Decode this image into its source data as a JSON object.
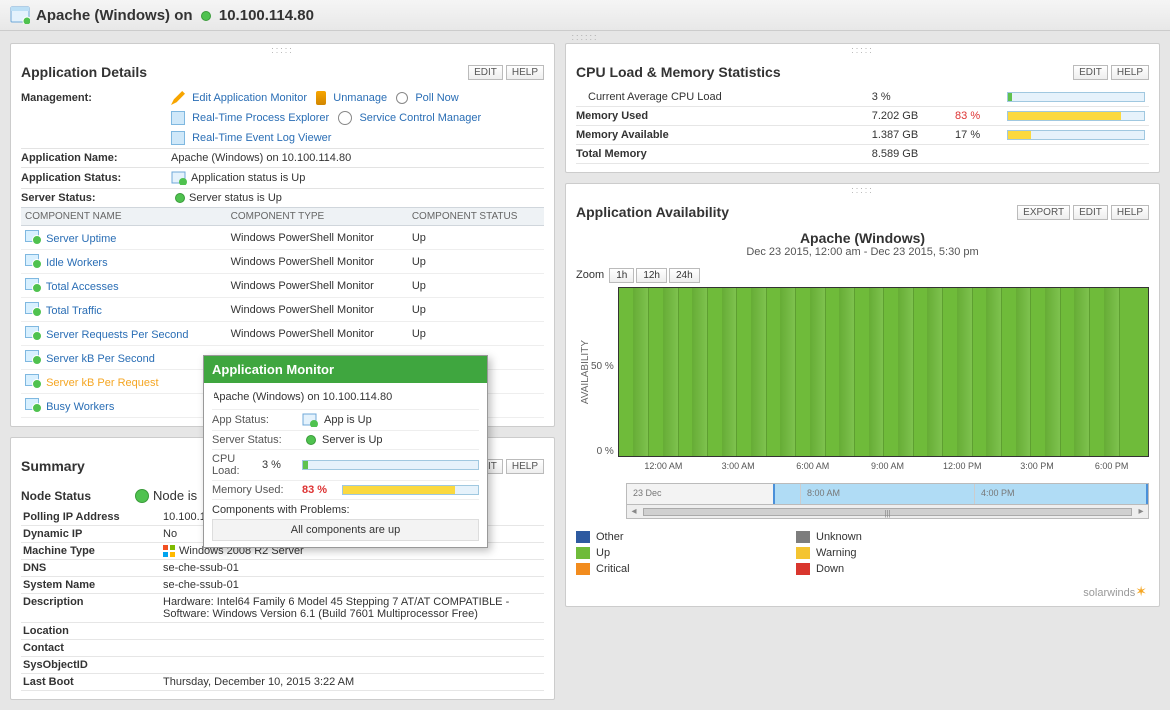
{
  "header": {
    "prefix": "Apache (Windows) on",
    "ip": "10.100.114.80"
  },
  "appDetails": {
    "title": "Application Details",
    "edit": "EDIT",
    "help": "HELP",
    "managementLabel": "Management:",
    "links": {
      "editMon": "Edit Application Monitor",
      "unmanage": "Unmanage",
      "pollNow": "Poll Now",
      "rtProcess": "Real-Time Process Explorer",
      "scm": "Service Control Manager",
      "rtEvent": "Real-Time Event Log Viewer"
    },
    "appNameLabel": "Application Name:",
    "appName": "Apache (Windows) on 10.100.114.80",
    "appStatusLabel": "Application Status:",
    "appStatus": "Application status is Up",
    "serverStatusLabel": "Server Status:",
    "serverStatus": "Server status is Up",
    "columns": {
      "c1": "COMPONENT NAME",
      "c2": "COMPONENT TYPE",
      "c3": "COMPONENT STATUS"
    },
    "rows": [
      {
        "name": "Server Uptime",
        "type": "Windows PowerShell Monitor",
        "status": "Up"
      },
      {
        "name": "Idle Workers",
        "type": "Windows PowerShell Monitor",
        "status": "Up"
      },
      {
        "name": "Total Accesses",
        "type": "Windows PowerShell Monitor",
        "status": "Up"
      },
      {
        "name": "Total Traffic",
        "type": "Windows PowerShell Monitor",
        "status": "Up"
      },
      {
        "name": "Server Requests Per Second",
        "type": "Windows PowerShell Monitor",
        "status": "Up"
      },
      {
        "name": "Server kB Per Second",
        "type": "",
        "status": ""
      },
      {
        "name": "Server kB Per Request",
        "type": "",
        "status": ""
      },
      {
        "name": "Busy Workers",
        "type": "",
        "status": ""
      }
    ],
    "highlightIndex": 6
  },
  "tooltip": {
    "title": "Application Monitor",
    "sub": "Apache (Windows) on 10.100.114.80",
    "appStatusLabel": "App Status:",
    "appStatus": "App is Up",
    "serverStatusLabel": "Server Status:",
    "serverStatus": "Server is Up",
    "cpuLabel": "CPU Load:",
    "cpuPct": "3 %",
    "cpuFill": 3,
    "memLabel": "Memory Used:",
    "memPct": "83 %",
    "memFill": 83,
    "problemsLabel": "Components with Problems:",
    "problemsText": "All components are up"
  },
  "summary": {
    "title": "Summary",
    "edit": "EDIT",
    "help": "HELP",
    "nodeStatusLabel": "Node Status",
    "nodeStatus": "Node is",
    "rows": [
      [
        "Polling IP Address",
        "10.100.1"
      ],
      [
        "Dynamic IP",
        "No"
      ],
      [
        "Machine Type",
        "Windows 2008 R2 Server"
      ],
      [
        "DNS",
        "se-che-ssub-01"
      ],
      [
        "System Name",
        "se-che-ssub-01"
      ],
      [
        "Description",
        "Hardware: Intel64 Family 6 Model 45 Stepping 7 AT/AT COMPATIBLE - Software: Windows Version 6.1 (Build 7601 Multiprocessor Free)"
      ],
      [
        "Location",
        ""
      ],
      [
        "Contact",
        ""
      ],
      [
        "SysObjectID",
        ""
      ],
      [
        "Last Boot",
        "Thursday, December 10, 2015 3:22 AM"
      ]
    ],
    "msRowIndex": 2
  },
  "cpuMem": {
    "title": "CPU Load & Memory Statistics",
    "edit": "EDIT",
    "help": "HELP",
    "rows": [
      {
        "label": "Current Average CPU Load",
        "val": "3 %",
        "pct": "",
        "fill": 3,
        "fillColor": "#5fc24f",
        "bold": false,
        "pctColor": "#333"
      },
      {
        "label": "Memory Used",
        "val": "7.202 GB",
        "pct": "83 %",
        "fill": 83,
        "fillColor": "#fbd93f",
        "bold": true,
        "pctColor": "#d33"
      },
      {
        "label": "Memory Available",
        "val": "1.387 GB",
        "pct": "17 %",
        "fill": 17,
        "fillColor": "#fbd93f",
        "bold": true,
        "pctColor": "#333"
      },
      {
        "label": "Total Memory",
        "val": "8.589 GB",
        "pct": "",
        "fill": 0,
        "fillColor": "",
        "bold": true,
        "pctColor": "#333"
      }
    ]
  },
  "avail": {
    "title": "Application Availability",
    "export": "EXPORT",
    "edit": "EDIT",
    "help": "HELP",
    "chartTitle": "Apache (Windows)",
    "chartSub": "Dec 23 2015, 12:00 am - Dec 23 2015, 5:30 pm",
    "zoomLabel": "Zoom",
    "zoom": [
      "1h",
      "12h",
      "24h"
    ],
    "ylabel": "AVAILABILITY",
    "yticks": [
      "",
      "50 %",
      "0 %"
    ],
    "xticks": [
      "12:00 AM",
      "3:00 AM",
      "6:00 AM",
      "9:00 AM",
      "12:00 PM",
      "3:00 PM",
      "6:00 PM"
    ],
    "nav": {
      "labels": [
        "23 Dec",
        "8:00 AM",
        "4:00 PM"
      ],
      "selStart": 28,
      "selEnd": 100
    },
    "plot": {
      "bg": "#6fbb3a",
      "stripes": 18
    },
    "legend": [
      {
        "label": "Other",
        "color": "#2e5aa0"
      },
      {
        "label": "Unknown",
        "color": "#7d7d7d"
      },
      {
        "label": "Up",
        "color": "#6fbb3a"
      },
      {
        "label": "Warning",
        "color": "#f4c430"
      },
      {
        "label": "Critical",
        "color": "#f28c1e"
      },
      {
        "label": "Down",
        "color": "#d9362e"
      }
    ],
    "logo": "solarwinds"
  }
}
